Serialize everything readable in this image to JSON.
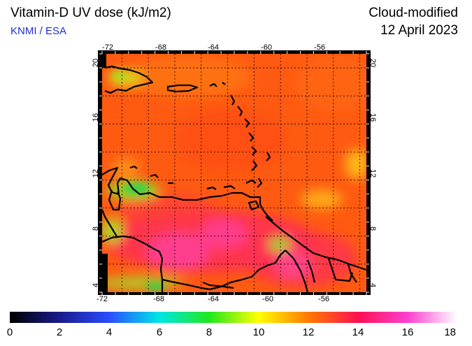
{
  "header": {
    "title": "Vitamin-D UV dose (kJ/m2)",
    "subtitle": "KNMI / ESA",
    "mode": "Cloud-modified",
    "date": "12 April 2023"
  },
  "map": {
    "lon_ticks": [
      "-72",
      "-68",
      "-64",
      "-60",
      "-56"
    ],
    "lat_ticks": [
      "20",
      "16",
      "12",
      "8",
      "4"
    ],
    "region": "Caribbean Sea and northern South America",
    "field_colors": {
      "base": "#ff5a12",
      "high": "#ff2f55",
      "peak": "#ff3f9a",
      "mid": "#ffb11a",
      "low": "#8fe028",
      "lowest": "#25d050",
      "missing": "#000000"
    }
  },
  "colorbar": {
    "labels": [
      "0",
      "2",
      "4",
      "6",
      "8",
      "10",
      "12",
      "14",
      "16",
      "18"
    ],
    "min": 0,
    "max": 18,
    "stops": [
      {
        "value": 0,
        "color": "#000000"
      },
      {
        "value": 2,
        "color": "#1a1a8c"
      },
      {
        "value": 4,
        "color": "#2b4dff"
      },
      {
        "value": 6,
        "color": "#00e6e6"
      },
      {
        "value": 8,
        "color": "#1ee81e"
      },
      {
        "value": 10,
        "color": "#ffff00"
      },
      {
        "value": 12,
        "color": "#ff7a00"
      },
      {
        "value": 14,
        "color": "#ff1050"
      },
      {
        "value": 16,
        "color": "#ff40d0"
      },
      {
        "value": 18,
        "color": "#ffffff"
      }
    ]
  }
}
